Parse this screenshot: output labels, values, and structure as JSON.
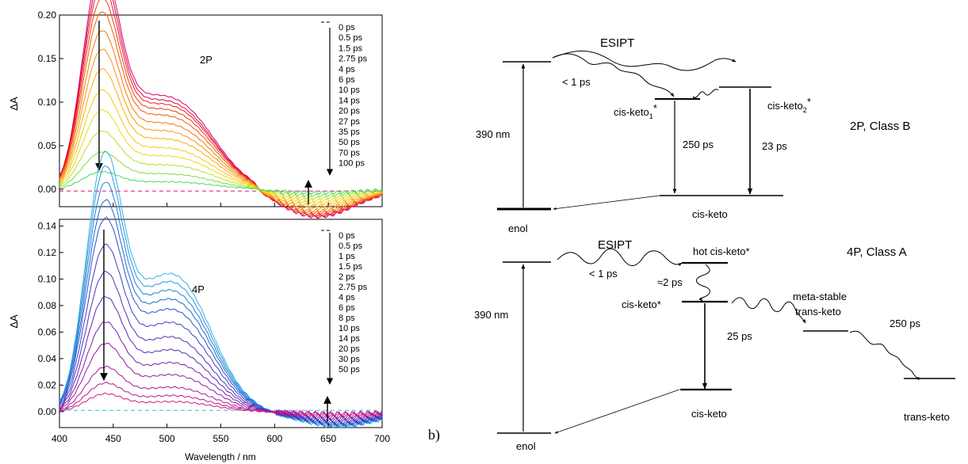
{
  "chart_data": [
    {
      "type": "line",
      "title": "",
      "annotation": "2P",
      "xlabel": "Wavelength / nm",
      "ylabel": "ΔA",
      "xlim": [
        400,
        700
      ],
      "ylim": [
        -0.02,
        0.2
      ],
      "xticks": [
        "400",
        "450",
        "500",
        "550",
        "600",
        "650",
        "700"
      ],
      "yticks": [
        "0.00",
        "0.05",
        "0.10",
        "0.15",
        "0.20"
      ],
      "grid": false,
      "legend_position": "right",
      "colors": [
        "#d4006f",
        "#e0004c",
        "#ea1c22",
        "#ee3b10",
        "#f25a0a",
        "#f57708",
        "#f79508",
        "#f9b00a",
        "#f7c810",
        "#e6da18",
        "#b9e02a",
        "#7fd93a",
        "#3ddb5c"
      ],
      "series": [
        {
          "name": "0.5 ps",
          "peak": 0.193,
          "shoulder": 0.06,
          "dip": -0.032
        },
        {
          "name": "1.5 ps",
          "peak": 0.184,
          "shoulder": 0.057,
          "dip": -0.031
        },
        {
          "name": "2.75 ps",
          "peak": 0.175,
          "shoulder": 0.055,
          "dip": -0.03
        },
        {
          "name": "4 ps",
          "peak": 0.164,
          "shoulder": 0.052,
          "dip": -0.029
        },
        {
          "name": "6 ps",
          "peak": 0.152,
          "shoulder": 0.048,
          "dip": -0.027
        },
        {
          "name": "10 ps",
          "peak": 0.136,
          "shoulder": 0.043,
          "dip": -0.025
        },
        {
          "name": "14 ps",
          "peak": 0.12,
          "shoulder": 0.038,
          "dip": -0.022
        },
        {
          "name": "20 ps",
          "peak": 0.103,
          "shoulder": 0.033,
          "dip": -0.019
        },
        {
          "name": "27 ps",
          "peak": 0.085,
          "shoulder": 0.027,
          "dip": -0.016
        },
        {
          "name": "35 ps",
          "peak": 0.068,
          "shoulder": 0.022,
          "dip": -0.013
        },
        {
          "name": "50 ps",
          "peak": 0.05,
          "shoulder": 0.016,
          "dip": -0.01
        },
        {
          "name": "70 ps",
          "peak": 0.032,
          "shoulder": 0.01,
          "dip": -0.007
        },
        {
          "name": "100 ps",
          "peak": 0.015,
          "shoulder": 0.005,
          "dip": -0.004
        }
      ],
      "baseline_legend": "0 ps",
      "baseline_value": -0.002,
      "baseline_color": "#e0186c"
    },
    {
      "type": "line",
      "title": "",
      "annotation": "4P",
      "xlabel": "Wavelength / nm",
      "ylabel": "ΔA",
      "xlim": [
        400,
        700
      ],
      "ylim": [
        -0.012,
        0.145
      ],
      "xticks": [
        "400",
        "450",
        "500",
        "550",
        "600",
        "650",
        "700"
      ],
      "yticks": [
        "0.00",
        "0.02",
        "0.04",
        "0.06",
        "0.08",
        "0.10",
        "0.12",
        "0.14"
      ],
      "grid": false,
      "legend_position": "right",
      "colors": [
        "#33b4e6",
        "#2a96e0",
        "#2380da",
        "#2168d3",
        "#2a52cc",
        "#3b3ec4",
        "#4d30bb",
        "#6226b2",
        "#7a1fab",
        "#921ba2",
        "#a81998",
        "#bd178e",
        "#d41785"
      ],
      "series": [
        {
          "name": "0.5 ps",
          "peak": 0.145,
          "shoulder": 0.066,
          "dip": -0.011
        },
        {
          "name": "1 ps",
          "peak": 0.137,
          "shoulder": 0.062,
          "dip": -0.0105
        },
        {
          "name": "1.5 ps",
          "peak": 0.128,
          "shoulder": 0.058,
          "dip": -0.01
        },
        {
          "name": "2 ps",
          "peak": 0.118,
          "shoulder": 0.054,
          "dip": -0.0095
        },
        {
          "name": "2.75 ps",
          "peak": 0.108,
          "shoulder": 0.049,
          "dip": -0.009
        },
        {
          "name": "4 ps",
          "peak": 0.093,
          "shoulder": 0.043,
          "dip": -0.008
        },
        {
          "name": "6 ps",
          "peak": 0.078,
          "shoulder": 0.036,
          "dip": -0.007
        },
        {
          "name": "8 ps",
          "peak": 0.064,
          "shoulder": 0.03,
          "dip": -0.006
        },
        {
          "name": "10 ps",
          "peak": 0.05,
          "shoulder": 0.024,
          "dip": -0.005
        },
        {
          "name": "14 ps",
          "peak": 0.038,
          "shoulder": 0.018,
          "dip": -0.004
        },
        {
          "name": "20 ps",
          "peak": 0.025,
          "shoulder": 0.012,
          "dip": -0.003
        },
        {
          "name": "30 ps",
          "peak": 0.016,
          "shoulder": 0.008,
          "dip": -0.002
        },
        {
          "name": "50 ps",
          "peak": 0.01,
          "shoulder": 0.005,
          "dip": -0.0015
        }
      ],
      "baseline_legend": "0 ps",
      "baseline_value": 0.001,
      "baseline_color": "#2fc4d8"
    }
  ],
  "panel_b_label": "b)",
  "diagram_2p": {
    "esipt": "ESIPT",
    "lt1ps": "< 1 ps",
    "excitation": "390 nm",
    "cis_keto1": "cis-keto",
    "cis_keto1_sub": "1",
    "cis_keto2": "cis-keto",
    "cis_keto2_sub": "2",
    "star": "*",
    "t250": "250 ps",
    "t23": "23 ps",
    "class": "2P, Class B",
    "cis_keto_ground": "cis-keto",
    "enol": "enol"
  },
  "diagram_4p": {
    "esipt": "ESIPT",
    "lt1ps": "< 1 ps",
    "hot": "hot cis-keto*",
    "approx2": "≈2 ps",
    "class": "4P, Class A",
    "cis_keto_star": "cis-keto*",
    "meta1": "meta-stable",
    "meta2": "trans-keto",
    "t250": "250 ps",
    "excitation": "390 nm",
    "t25": "25 ps",
    "enol": "enol",
    "cis_keto_ground": "cis-keto",
    "trans_keto": "trans-keto"
  }
}
